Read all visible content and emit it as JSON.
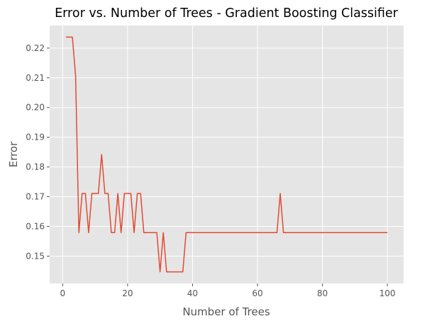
{
  "chart_data": {
    "type": "line",
    "title": "Error vs. Number of Trees - Gradient Boosting Classifier",
    "xlabel": "Number of Trees",
    "ylabel": "Error",
    "xlim": [
      -4,
      105
    ],
    "ylim": [
      0.1408,
      0.2276
    ],
    "xticks": [
      0,
      20,
      40,
      60,
      80,
      100
    ],
    "xtick_labels": [
      "0",
      "20",
      "40",
      "60",
      "80",
      "100"
    ],
    "yticks": [
      0.15,
      0.16,
      0.17,
      0.18,
      0.19,
      0.2,
      0.21,
      0.22
    ],
    "ytick_labels": [
      "0.15",
      "0.16",
      "0.17",
      "0.18",
      "0.19",
      "0.20",
      "0.21",
      "0.22"
    ],
    "grid": true,
    "series": [
      {
        "color": "#e24a33",
        "x": [
          1,
          2,
          3,
          4,
          5,
          6,
          7,
          8,
          9,
          10,
          11,
          12,
          13,
          14,
          15,
          16,
          17,
          18,
          19,
          20,
          21,
          22,
          23,
          24,
          25,
          26,
          27,
          28,
          29,
          30,
          31,
          32,
          33,
          34,
          35,
          36,
          37,
          38,
          39,
          40,
          41,
          42,
          43,
          44,
          45,
          46,
          47,
          48,
          49,
          50,
          51,
          52,
          53,
          54,
          55,
          56,
          57,
          58,
          59,
          60,
          61,
          62,
          63,
          64,
          65,
          66,
          67,
          68,
          69,
          70,
          71,
          72,
          73,
          74,
          75,
          76,
          77,
          78,
          79,
          80,
          81,
          82,
          83,
          84,
          85,
          86,
          87,
          88,
          89,
          90,
          91,
          92,
          93,
          94,
          95,
          96,
          97,
          98,
          99,
          100
        ],
        "y": [
          0.2237,
          0.2237,
          0.2237,
          0.2105,
          0.1579,
          0.1711,
          0.1711,
          0.1579,
          0.1711,
          0.1711,
          0.1711,
          0.1842,
          0.1711,
          0.1711,
          0.1579,
          0.1579,
          0.1711,
          0.1579,
          0.1711,
          0.1711,
          0.1711,
          0.1579,
          0.1711,
          0.1711,
          0.1579,
          0.1579,
          0.1579,
          0.1579,
          0.1579,
          0.1447,
          0.1579,
          0.1447,
          0.1447,
          0.1447,
          0.1447,
          0.1447,
          0.1447,
          0.1579,
          0.1579,
          0.1579,
          0.1579,
          0.1579,
          0.1579,
          0.1579,
          0.1579,
          0.1579,
          0.1579,
          0.1579,
          0.1579,
          0.1579,
          0.1579,
          0.1579,
          0.1579,
          0.1579,
          0.1579,
          0.1579,
          0.1579,
          0.1579,
          0.1579,
          0.1579,
          0.1579,
          0.1579,
          0.1579,
          0.1579,
          0.1579,
          0.1579,
          0.1711,
          0.1579,
          0.1579,
          0.1579,
          0.1579,
          0.1579,
          0.1579,
          0.1579,
          0.1579,
          0.1579,
          0.1579,
          0.1579,
          0.1579,
          0.1579,
          0.1579,
          0.1579,
          0.1579,
          0.1579,
          0.1579,
          0.1579,
          0.1579,
          0.1579,
          0.1579,
          0.1579,
          0.1579,
          0.1579,
          0.1579,
          0.1579,
          0.1579,
          0.1579,
          0.1579,
          0.1579,
          0.1579,
          0.1579
        ]
      }
    ]
  }
}
